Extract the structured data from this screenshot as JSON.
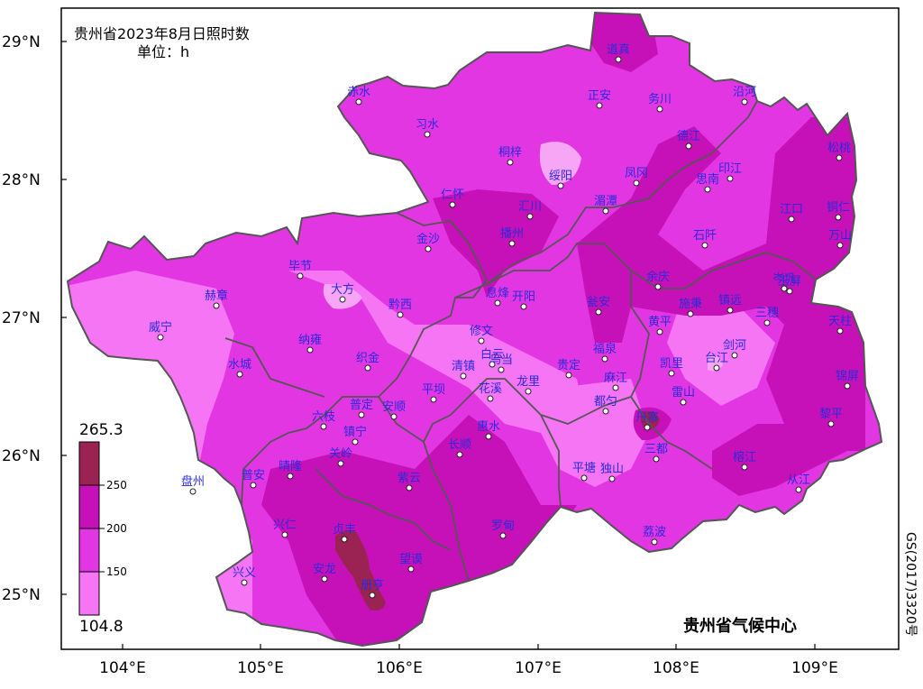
{
  "title": {
    "line1": "贵州省2023年8月日照时数",
    "line2": "单位：h"
  },
  "credit": "贵州省气候中心",
  "map_number": "GS(2017)3320号",
  "axes": {
    "lat_labels": [
      "29°N",
      "28°N",
      "27°N",
      "26°N",
      "25°N"
    ],
    "lon_labels": [
      "104°E",
      "105°E",
      "106°E",
      "107°E",
      "108°E",
      "109°E"
    ]
  },
  "legend": {
    "max": "265.3",
    "min": "104.8",
    "breaks": [
      "250",
      "200",
      "150"
    ],
    "colors": [
      "#9a2353",
      "#c711b8",
      "#e336e3",
      "#f575f4"
    ]
  },
  "colors": {
    "level1": "#f7a6f5",
    "level2": "#f575f4",
    "level3": "#e336e3",
    "level4": "#c711b8",
    "level5": "#9a2353",
    "boundary": "#555555",
    "label": "#2b2bd8"
  },
  "stations": [
    {
      "name": "道真"
    },
    {
      "name": "赤水"
    },
    {
      "name": "习水"
    },
    {
      "name": "正安"
    },
    {
      "name": "务川"
    },
    {
      "name": "沿河"
    },
    {
      "name": "桐梓"
    },
    {
      "name": "绥阳"
    },
    {
      "name": "德江"
    },
    {
      "name": "凤冈"
    },
    {
      "name": "印江"
    },
    {
      "name": "思南"
    },
    {
      "name": "松桃"
    },
    {
      "name": "仁怀"
    },
    {
      "name": "汇川"
    },
    {
      "name": "湄潭"
    },
    {
      "name": "江口"
    },
    {
      "name": "铜仁"
    },
    {
      "name": "播州"
    },
    {
      "name": "金沙"
    },
    {
      "name": "石阡"
    },
    {
      "name": "万山"
    },
    {
      "name": "毕节"
    },
    {
      "name": "大方"
    },
    {
      "name": "息烽"
    },
    {
      "name": "开阳"
    },
    {
      "name": "余庆"
    },
    {
      "name": "玉屏"
    },
    {
      "name": "赫章"
    },
    {
      "name": "黔西"
    },
    {
      "name": "瓮安"
    },
    {
      "name": "施秉"
    },
    {
      "name": "镇远"
    },
    {
      "name": "岑巩"
    },
    {
      "name": "三穗"
    },
    {
      "name": "天柱"
    },
    {
      "name": "威宁"
    },
    {
      "name": "修文"
    },
    {
      "name": "黄平"
    },
    {
      "name": "纳雍"
    },
    {
      "name": "织金"
    },
    {
      "name": "白云"
    },
    {
      "name": "乌当"
    },
    {
      "name": "贵定"
    },
    {
      "name": "福泉"
    },
    {
      "name": "凯里"
    },
    {
      "name": "台江"
    },
    {
      "name": "剑河"
    },
    {
      "name": "水城"
    },
    {
      "name": "清镇"
    },
    {
      "name": "花溪"
    },
    {
      "name": "龙里"
    },
    {
      "name": "麻江"
    },
    {
      "name": "雷山"
    },
    {
      "name": "锦屏"
    },
    {
      "name": "平坝"
    },
    {
      "name": "都匀"
    },
    {
      "name": "丹寨"
    },
    {
      "name": "普定"
    },
    {
      "name": "安顺"
    },
    {
      "name": "六枝"
    },
    {
      "name": "黎平"
    },
    {
      "name": "镇宁"
    },
    {
      "name": "惠水"
    },
    {
      "name": "长顺"
    },
    {
      "name": "关岭"
    },
    {
      "name": "三都"
    },
    {
      "name": "盘州"
    },
    {
      "name": "普安"
    },
    {
      "name": "晴隆"
    },
    {
      "name": "紫云"
    },
    {
      "name": "平塘"
    },
    {
      "name": "独山"
    },
    {
      "name": "榕江"
    },
    {
      "name": "从江"
    },
    {
      "name": "兴仁"
    },
    {
      "name": "贞丰"
    },
    {
      "name": "罗甸"
    },
    {
      "name": "荔波"
    },
    {
      "name": "兴义"
    },
    {
      "name": "安龙"
    },
    {
      "name": "望谟"
    },
    {
      "name": "册亨"
    }
  ]
}
